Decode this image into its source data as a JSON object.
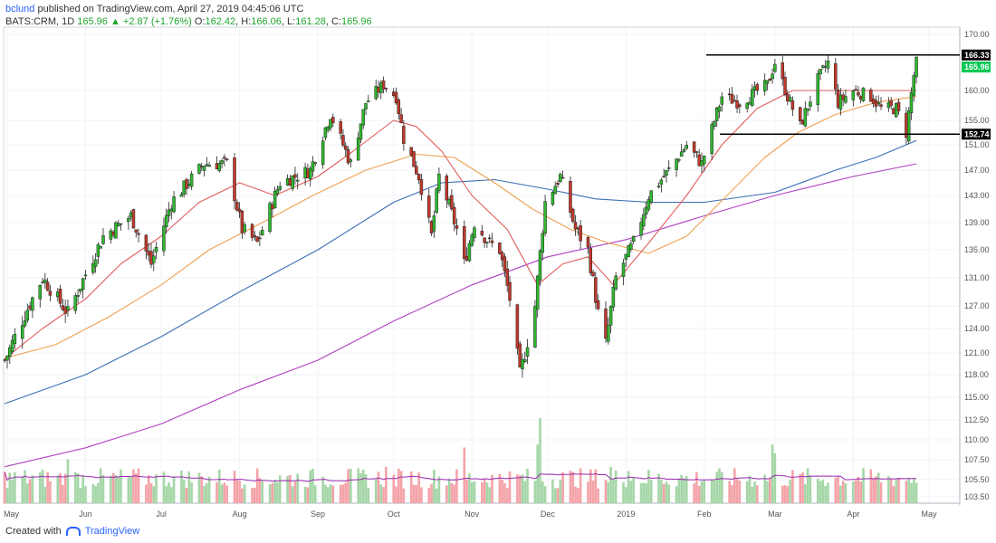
{
  "header": {
    "user": "bclund",
    "published_text": "published on TradingView.com, April 27, 2019 04:45:06 UTC",
    "symbol": "BATS:CRM, 1D",
    "last": "165.96",
    "change": "▲ +2.87 (+1.76%)",
    "open_label": "O:",
    "open": "162.42",
    "high_label": "H:",
    "high": "166.06",
    "low_label": "L:",
    "low": "161.28",
    "close_label": "C:",
    "close": "165.96"
  },
  "footer": {
    "created_with": "Created with",
    "brand": "TradingView"
  },
  "colors": {
    "up": "#26a69a",
    "up_candle": "#2eb82e",
    "down_candle": "#c0392b",
    "ma_red": "#e05c5c",
    "ma_orange": "#f0a050",
    "ma_blue": "#3a6fb5",
    "ma_purple": "#b040c0",
    "vol_up": "#a5d6a7",
    "vol_down": "#f4a3a8",
    "vol_ma": "#9c27b0"
  },
  "chart_data": {
    "type": "candlestick",
    "x_tick_labels": [
      "May",
      "Jun",
      "Jul",
      "Aug",
      "Sep",
      "Oct",
      "Nov",
      "Dec",
      "2019",
      "Feb",
      "Mar",
      "Apr",
      "May"
    ],
    "y_tick_labels": [
      "170.00",
      "166.33",
      "165.96",
      "160.00",
      "155.00",
      "152.74",
      "151.00",
      "147.00",
      "143.00",
      "139.00",
      "135.00",
      "131.00",
      "127.00",
      "124.00",
      "121.00",
      "118.00",
      "115.00",
      "112.50",
      "110.00",
      "107.50",
      "105.50",
      "103.50"
    ],
    "y_ticks": [
      170.0,
      160.0,
      155.0,
      151.0,
      147.0,
      143.0,
      139.0,
      135.0,
      131.0,
      127.0,
      124.0,
      121.0,
      118.0,
      115.0,
      112.5,
      110.0,
      107.5,
      105.5,
      103.5
    ],
    "resistance": 166.33,
    "support": 152.74,
    "last_price": 165.96,
    "anchors": [
      [
        "2018-04-30",
        120
      ],
      [
        "2018-05-15",
        131
      ],
      [
        "2018-05-25",
        126
      ],
      [
        "2018-06-08",
        137
      ],
      [
        "2018-06-19",
        140
      ],
      [
        "2018-06-27",
        133
      ],
      [
        "2018-07-05",
        142
      ],
      [
        "2018-07-18",
        148
      ],
      [
        "2018-07-27",
        148
      ],
      [
        "2018-08-02",
        138
      ],
      [
        "2018-08-08",
        136
      ],
      [
        "2018-08-17",
        145
      ],
      [
        "2018-08-29",
        147
      ],
      [
        "2018-09-06",
        156
      ],
      [
        "2018-09-14",
        148
      ],
      [
        "2018-09-20",
        158
      ],
      [
        "2018-09-27",
        161
      ],
      [
        "2018-10-02",
        159
      ],
      [
        "2018-10-05",
        152
      ],
      [
        "2018-10-11",
        146
      ],
      [
        "2018-10-16",
        137
      ],
      [
        "2018-10-19",
        146
      ],
      [
        "2018-10-26",
        138
      ],
      [
        "2018-10-29",
        133
      ],
      [
        "2018-11-02",
        139
      ],
      [
        "2018-11-08",
        136
      ],
      [
        "2018-11-12",
        135
      ],
      [
        "2018-11-16",
        128
      ],
      [
        "2018-11-20",
        118
      ],
      [
        "2018-11-26",
        127
      ],
      [
        "2018-11-30",
        142
      ],
      [
        "2018-12-06",
        146
      ],
      [
        "2018-12-12",
        138
      ],
      [
        "2018-12-17",
        135
      ],
      [
        "2018-12-21",
        126
      ],
      [
        "2018-12-24",
        122
      ],
      [
        "2018-12-28",
        131
      ],
      [
        "2019-01-04",
        136
      ],
      [
        "2019-01-10",
        143
      ],
      [
        "2019-01-18",
        147
      ],
      [
        "2019-01-25",
        151
      ],
      [
        "2019-01-31",
        148
      ],
      [
        "2019-02-08",
        159
      ],
      [
        "2019-02-15",
        158
      ],
      [
        "2019-02-26",
        161
      ],
      [
        "2019-03-01",
        165
      ],
      [
        "2019-03-06",
        159
      ],
      [
        "2019-03-11",
        154
      ],
      [
        "2019-03-18",
        162
      ],
      [
        "2019-03-22",
        165
      ],
      [
        "2019-03-26",
        158
      ],
      [
        "2019-04-01",
        160
      ],
      [
        "2019-04-08",
        159
      ],
      [
        "2019-04-12",
        157
      ],
      [
        "2019-04-18",
        157
      ],
      [
        "2019-04-22",
        153
      ],
      [
        "2019-04-26",
        165.96
      ]
    ],
    "ma20": [
      [
        "2018-04-30",
        120.2
      ],
      [
        "2018-05-15",
        124
      ],
      [
        "2018-06-01",
        128
      ],
      [
        "2018-06-15",
        133
      ],
      [
        "2018-07-01",
        137
      ],
      [
        "2018-07-16",
        142
      ],
      [
        "2018-08-01",
        145
      ],
      [
        "2018-08-15",
        143
      ],
      [
        "2018-09-01",
        146
      ],
      [
        "2018-09-15",
        150
      ],
      [
        "2018-10-01",
        155
      ],
      [
        "2018-10-10",
        154
      ],
      [
        "2018-10-20",
        150
      ],
      [
        "2018-11-01",
        143
      ],
      [
        "2018-11-15",
        138
      ],
      [
        "2018-11-27",
        130
      ],
      [
        "2018-12-07",
        133
      ],
      [
        "2018-12-17",
        134
      ],
      [
        "2018-12-27",
        130
      ],
      [
        "2019-01-10",
        136
      ],
      [
        "2019-01-25",
        143
      ],
      [
        "2019-02-08",
        151
      ],
      [
        "2019-02-22",
        157
      ],
      [
        "2019-03-08",
        160
      ],
      [
        "2019-03-22",
        160
      ],
      [
        "2019-04-08",
        160
      ],
      [
        "2019-04-26",
        160
      ]
    ],
    "ma50": [
      [
        "2018-04-30",
        120.3
      ],
      [
        "2018-05-20",
        122
      ],
      [
        "2018-06-10",
        125.5
      ],
      [
        "2018-07-01",
        130
      ],
      [
        "2018-07-20",
        135
      ],
      [
        "2018-08-10",
        139
      ],
      [
        "2018-08-30",
        143
      ],
      [
        "2018-09-20",
        147
      ],
      [
        "2018-10-10",
        149.5
      ],
      [
        "2018-10-25",
        149
      ],
      [
        "2018-11-10",
        145
      ],
      [
        "2018-11-25",
        141
      ],
      [
        "2018-12-10",
        138
      ],
      [
        "2018-12-25",
        136
      ],
      [
        "2019-01-10",
        134.5
      ],
      [
        "2019-01-25",
        137
      ],
      [
        "2019-02-10",
        143
      ],
      [
        "2019-02-25",
        149
      ],
      [
        "2019-03-10",
        153
      ],
      [
        "2019-03-25",
        156
      ],
      [
        "2019-04-10",
        158
      ],
      [
        "2019-04-26",
        159
      ]
    ],
    "ma100": [
      [
        "2018-04-30",
        114.3
      ],
      [
        "2018-06-01",
        118
      ],
      [
        "2018-07-01",
        123
      ],
      [
        "2018-08-01",
        129
      ],
      [
        "2018-09-01",
        135
      ],
      [
        "2018-10-01",
        142
      ],
      [
        "2018-10-20",
        145
      ],
      [
        "2018-11-10",
        145.5
      ],
      [
        "2018-12-01",
        144
      ],
      [
        "2018-12-20",
        142.5
      ],
      [
        "2019-01-10",
        142
      ],
      [
        "2019-02-01",
        142
      ],
      [
        "2019-03-01",
        143.5
      ],
      [
        "2019-03-25",
        147
      ],
      [
        "2019-04-10",
        149
      ],
      [
        "2019-04-26",
        151.7
      ]
    ],
    "ma200": [
      [
        "2018-04-30",
        106.8
      ],
      [
        "2018-06-01",
        109
      ],
      [
        "2018-07-01",
        112
      ],
      [
        "2018-08-01",
        116
      ],
      [
        "2018-09-01",
        120
      ],
      [
        "2018-10-01",
        125
      ],
      [
        "2018-11-01",
        130
      ],
      [
        "2018-12-01",
        134
      ],
      [
        "2019-01-01",
        136.5
      ],
      [
        "2019-02-01",
        140
      ],
      [
        "2019-03-01",
        143
      ],
      [
        "2019-04-01",
        146
      ],
      [
        "2019-04-26",
        148
      ]
    ],
    "volume_note": "volume bars shown at bottom; volume moving average line overlaid"
  }
}
